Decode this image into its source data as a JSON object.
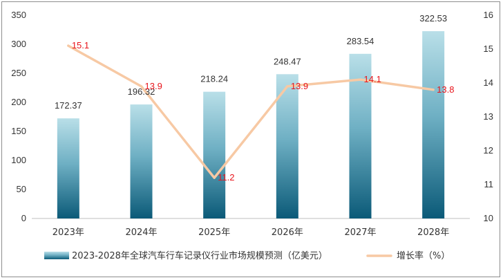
{
  "chart_data": {
    "type": "bar",
    "categories": [
      "2023年",
      "2024年",
      "2025年",
      "2026年",
      "2027年",
      "2028年"
    ],
    "series": [
      {
        "name": "2023-2028年全球汽车行车记录仪行业市场规模预测（亿美元）",
        "type": "bar",
        "axis": "left",
        "values": [
          172.37,
          196.32,
          218.24,
          248.47,
          283.54,
          322.53
        ]
      },
      {
        "name": "增长率（%）",
        "type": "line",
        "axis": "right",
        "values": [
          15.1,
          13.9,
          11.2,
          13.9,
          14.1,
          13.8
        ]
      }
    ],
    "y_left": {
      "min": 0,
      "max": 350,
      "ticks": [
        0,
        50,
        100,
        150,
        200,
        250,
        300,
        350
      ]
    },
    "y_right": {
      "min": 10,
      "max": 16,
      "ticks": [
        10,
        11,
        12,
        13,
        14,
        15,
        16
      ]
    },
    "grid": false,
    "legend_position": "bottom",
    "colors": {
      "bar_top": "#b9dfe8",
      "bar_bottom": "#0b5a78",
      "line": "#f7c9a4",
      "line_label": "#e8141b",
      "text": "#333333",
      "axis": "#bfbfbf"
    }
  }
}
